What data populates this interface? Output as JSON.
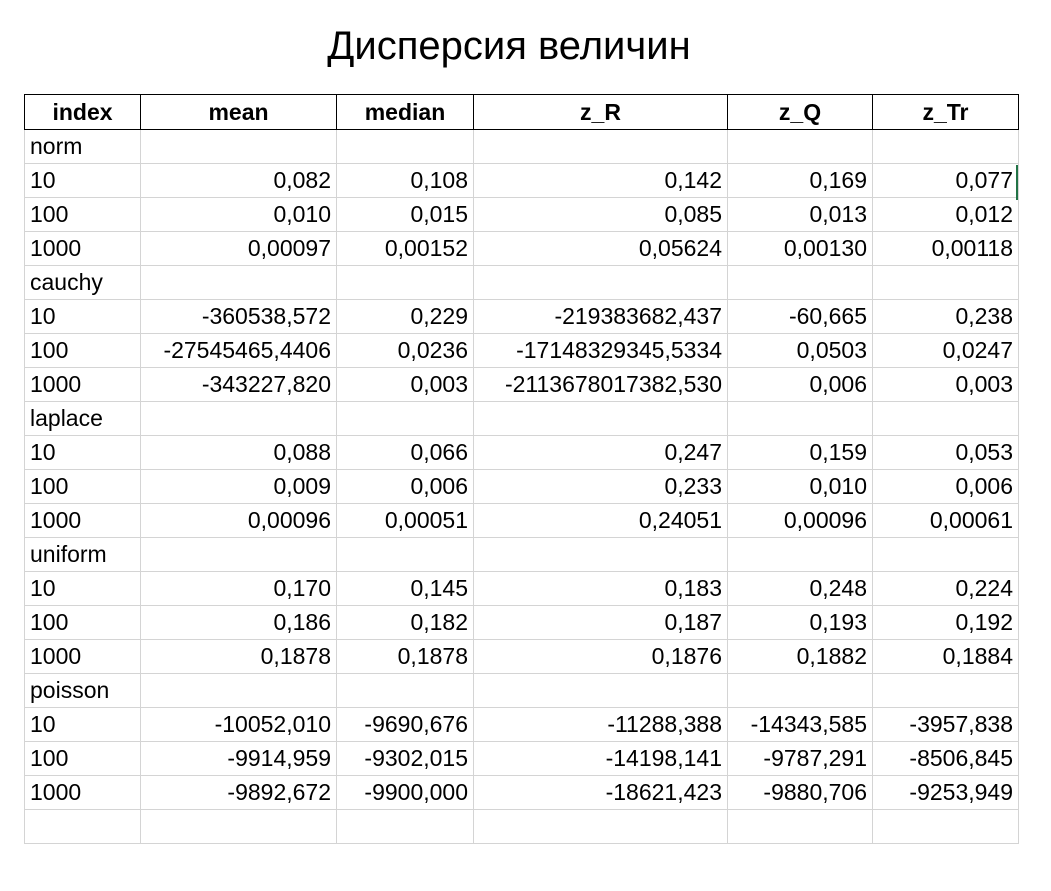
{
  "title": "Дисперсия величин",
  "columns": [
    "index",
    "mean",
    "median",
    "z_R",
    "z_Q",
    "z_Tr"
  ],
  "groups": [
    {
      "name": "norm",
      "rows": [
        [
          "10",
          "0,082",
          "0,108",
          "0,142",
          "0,169",
          "0,077"
        ],
        [
          "100",
          "0,010",
          "0,015",
          "0,085",
          "0,013",
          "0,012"
        ],
        [
          "1000",
          "0,00097",
          "0,00152",
          "0,05624",
          "0,00130",
          "0,00118"
        ]
      ]
    },
    {
      "name": "cauchy",
      "rows": [
        [
          "10",
          "-360538,572",
          "0,229",
          "-219383682,437",
          "-60,665",
          "0,238"
        ],
        [
          "100",
          "-27545465,4406",
          "0,0236",
          "-17148329345,5334",
          "0,0503",
          "0,0247"
        ],
        [
          "1000",
          "-343227,820",
          "0,003",
          "-2113678017382,530",
          "0,006",
          "0,003"
        ]
      ]
    },
    {
      "name": "laplace",
      "rows": [
        [
          "10",
          "0,088",
          "0,066",
          "0,247",
          "0,159",
          "0,053"
        ],
        [
          "100",
          "0,009",
          "0,006",
          "0,233",
          "0,010",
          "0,006"
        ],
        [
          "1000",
          "0,00096",
          "0,00051",
          "0,24051",
          "0,00096",
          "0,00061"
        ]
      ]
    },
    {
      "name": "uniform",
      "rows": [
        [
          "10",
          "0,170",
          "0,145",
          "0,183",
          "0,248",
          "0,224"
        ],
        [
          "100",
          "0,186",
          "0,182",
          "0,187",
          "0,193",
          "0,192"
        ],
        [
          "1000",
          "0,1878",
          "0,1878",
          "0,1876",
          "0,1882",
          "0,1884"
        ]
      ]
    },
    {
      "name": "poisson",
      "rows": [
        [
          "10",
          "-10052,010",
          "-9690,676",
          "-11288,388",
          "-14343,585",
          "-3957,838"
        ],
        [
          "100",
          "-9914,959",
          "-9302,015",
          "-14198,141",
          "-9787,291",
          "-8506,845"
        ],
        [
          "1000",
          "-9892,672",
          "-9900,000",
          "-18621,423",
          "-9880,706",
          "-9253,949"
        ]
      ]
    }
  ]
}
